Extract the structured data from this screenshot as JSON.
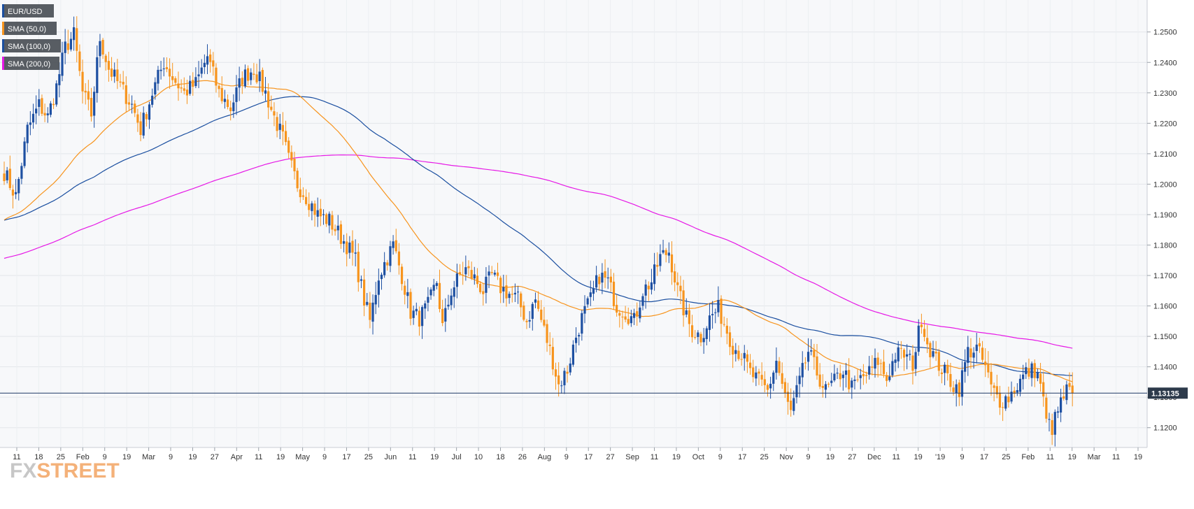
{
  "chart_data": {
    "type": "candlestick",
    "symbol": "EUR/USD",
    "ylim": [
      1.1135,
      1.2605
    ],
    "y_ticks": [
      "1.1200",
      "1.1300",
      "1.1400",
      "1.1500",
      "1.1600",
      "1.1700",
      "1.1800",
      "1.1900",
      "1.2000",
      "1.2100",
      "1.2200",
      "1.2300",
      "1.2400",
      "1.2500"
    ],
    "x_ticks": [
      "11",
      "18",
      "25",
      "Feb",
      "9",
      "19",
      "Mar",
      "9",
      "19",
      "27",
      "Apr",
      "11",
      "19",
      "May",
      "9",
      "17",
      "25",
      "Jun",
      "11",
      "19",
      "Jul",
      "10",
      "18",
      "26",
      "Aug",
      "9",
      "17",
      "27",
      "Sep",
      "11",
      "19",
      "Oct",
      "9",
      "17",
      "25",
      "Nov",
      "9",
      "19",
      "27",
      "Dec",
      "11",
      "19",
      "'19",
      "9",
      "17",
      "25",
      "Feb",
      "11",
      "19",
      "Mar",
      "11",
      "19"
    ],
    "last_price": 1.13135,
    "last_price_label": "1.13135",
    "grid": true,
    "legend_placement": "top-left",
    "legend": [
      {
        "label": "EUR/USD",
        "color": "#1b4fa0"
      },
      {
        "label": "SMA (50,0)",
        "color": "#f7941d"
      },
      {
        "label": "SMA (100,0)",
        "color": "#1b4fa0"
      },
      {
        "label": "SMA (200,0)",
        "color": "#e619e6"
      }
    ],
    "colors": {
      "up": "#1e50a2",
      "down": "#f7941d",
      "sma50": "#f7941d",
      "sma100": "#1b4fa0",
      "sma200": "#e619e6",
      "last_line": "#1f3864"
    },
    "anchors": [
      [
        0,
        1.204
      ],
      [
        4,
        1.196
      ],
      [
        8,
        1.218
      ],
      [
        12,
        1.226
      ],
      [
        15,
        1.222
      ],
      [
        18,
        1.232
      ],
      [
        21,
        1.245
      ],
      [
        24,
        1.249
      ],
      [
        27,
        1.23
      ],
      [
        30,
        1.223
      ],
      [
        33,
        1.248
      ],
      [
        36,
        1.238
      ],
      [
        40,
        1.232
      ],
      [
        44,
        1.226
      ],
      [
        47,
        1.218
      ],
      [
        51,
        1.23
      ],
      [
        55,
        1.24
      ],
      [
        58,
        1.235
      ],
      [
        62,
        1.23
      ],
      [
        66,
        1.233
      ],
      [
        70,
        1.242
      ],
      [
        74,
        1.23
      ],
      [
        78,
        1.225
      ],
      [
        82,
        1.235
      ],
      [
        86,
        1.238
      ],
      [
        90,
        1.23
      ],
      [
        93,
        1.222
      ],
      [
        96,
        1.215
      ],
      [
        98,
        1.208
      ],
      [
        101,
        1.2
      ],
      [
        104,
        1.196
      ],
      [
        108,
        1.19
      ],
      [
        112,
        1.188
      ],
      [
        115,
        1.184
      ],
      [
        118,
        1.18
      ],
      [
        121,
        1.175
      ],
      [
        124,
        1.162
      ],
      [
        126,
        1.155
      ],
      [
        129,
        1.17
      ],
      [
        132,
        1.176
      ],
      [
        134,
        1.18
      ],
      [
        137,
        1.17
      ],
      [
        140,
        1.158
      ],
      [
        143,
        1.156
      ],
      [
        146,
        1.16
      ],
      [
        149,
        1.168
      ],
      [
        151,
        1.153
      ],
      [
        154,
        1.165
      ],
      [
        157,
        1.17
      ],
      [
        159,
        1.172
      ],
      [
        162,
        1.169
      ],
      [
        165,
        1.165
      ],
      [
        168,
        1.17
      ],
      [
        171,
        1.166
      ],
      [
        174,
        1.164
      ],
      [
        177,
        1.162
      ],
      [
        180,
        1.155
      ],
      [
        183,
        1.162
      ],
      [
        186,
        1.152
      ],
      [
        189,
        1.142
      ],
      [
        191,
        1.134
      ],
      [
        194,
        1.139
      ],
      [
        197,
        1.15
      ],
      [
        199,
        1.156
      ],
      [
        202,
        1.162
      ],
      [
        205,
        1.17
      ],
      [
        208,
        1.168
      ],
      [
        211,
        1.16
      ],
      [
        214,
        1.158
      ],
      [
        217,
        1.155
      ],
      [
        220,
        1.165
      ],
      [
        223,
        1.168
      ],
      [
        226,
        1.176
      ],
      [
        229,
        1.178
      ],
      [
        232,
        1.165
      ],
      [
        235,
        1.156
      ],
      [
        237,
        1.152
      ],
      [
        240,
        1.15
      ],
      [
        243,
        1.156
      ],
      [
        246,
        1.159
      ],
      [
        249,
        1.152
      ],
      [
        251,
        1.147
      ],
      [
        254,
        1.144
      ],
      [
        257,
        1.138
      ],
      [
        260,
        1.135
      ],
      [
        263,
        1.132
      ],
      [
        266,
        1.142
      ],
      [
        269,
        1.13
      ],
      [
        271,
        1.125
      ],
      [
        274,
        1.135
      ],
      [
        277,
        1.145
      ],
      [
        280,
        1.138
      ],
      [
        283,
        1.132
      ],
      [
        286,
        1.135
      ],
      [
        289,
        1.139
      ],
      [
        292,
        1.133
      ],
      [
        295,
        1.136
      ],
      [
        298,
        1.138
      ],
      [
        301,
        1.142
      ],
      [
        304,
        1.136
      ],
      [
        307,
        1.144
      ],
      [
        310,
        1.144
      ],
      [
        313,
        1.141
      ],
      [
        316,
        1.156
      ],
      [
        318,
        1.148
      ],
      [
        321,
        1.142
      ],
      [
        324,
        1.138
      ],
      [
        327,
        1.134
      ],
      [
        329,
        1.133
      ],
      [
        332,
        1.145
      ],
      [
        335,
        1.146
      ],
      [
        338,
        1.14
      ],
      [
        340,
        1.133
      ],
      [
        343,
        1.129
      ],
      [
        346,
        1.13
      ],
      [
        349,
        1.134
      ],
      [
        352,
        1.138
      ],
      [
        355,
        1.139
      ],
      [
        357,
        1.135
      ],
      [
        359,
        1.122
      ],
      [
        361,
        1.12
      ],
      [
        364,
        1.128
      ],
      [
        366,
        1.132
      ],
      [
        368,
        1.1313
      ]
    ]
  }
}
